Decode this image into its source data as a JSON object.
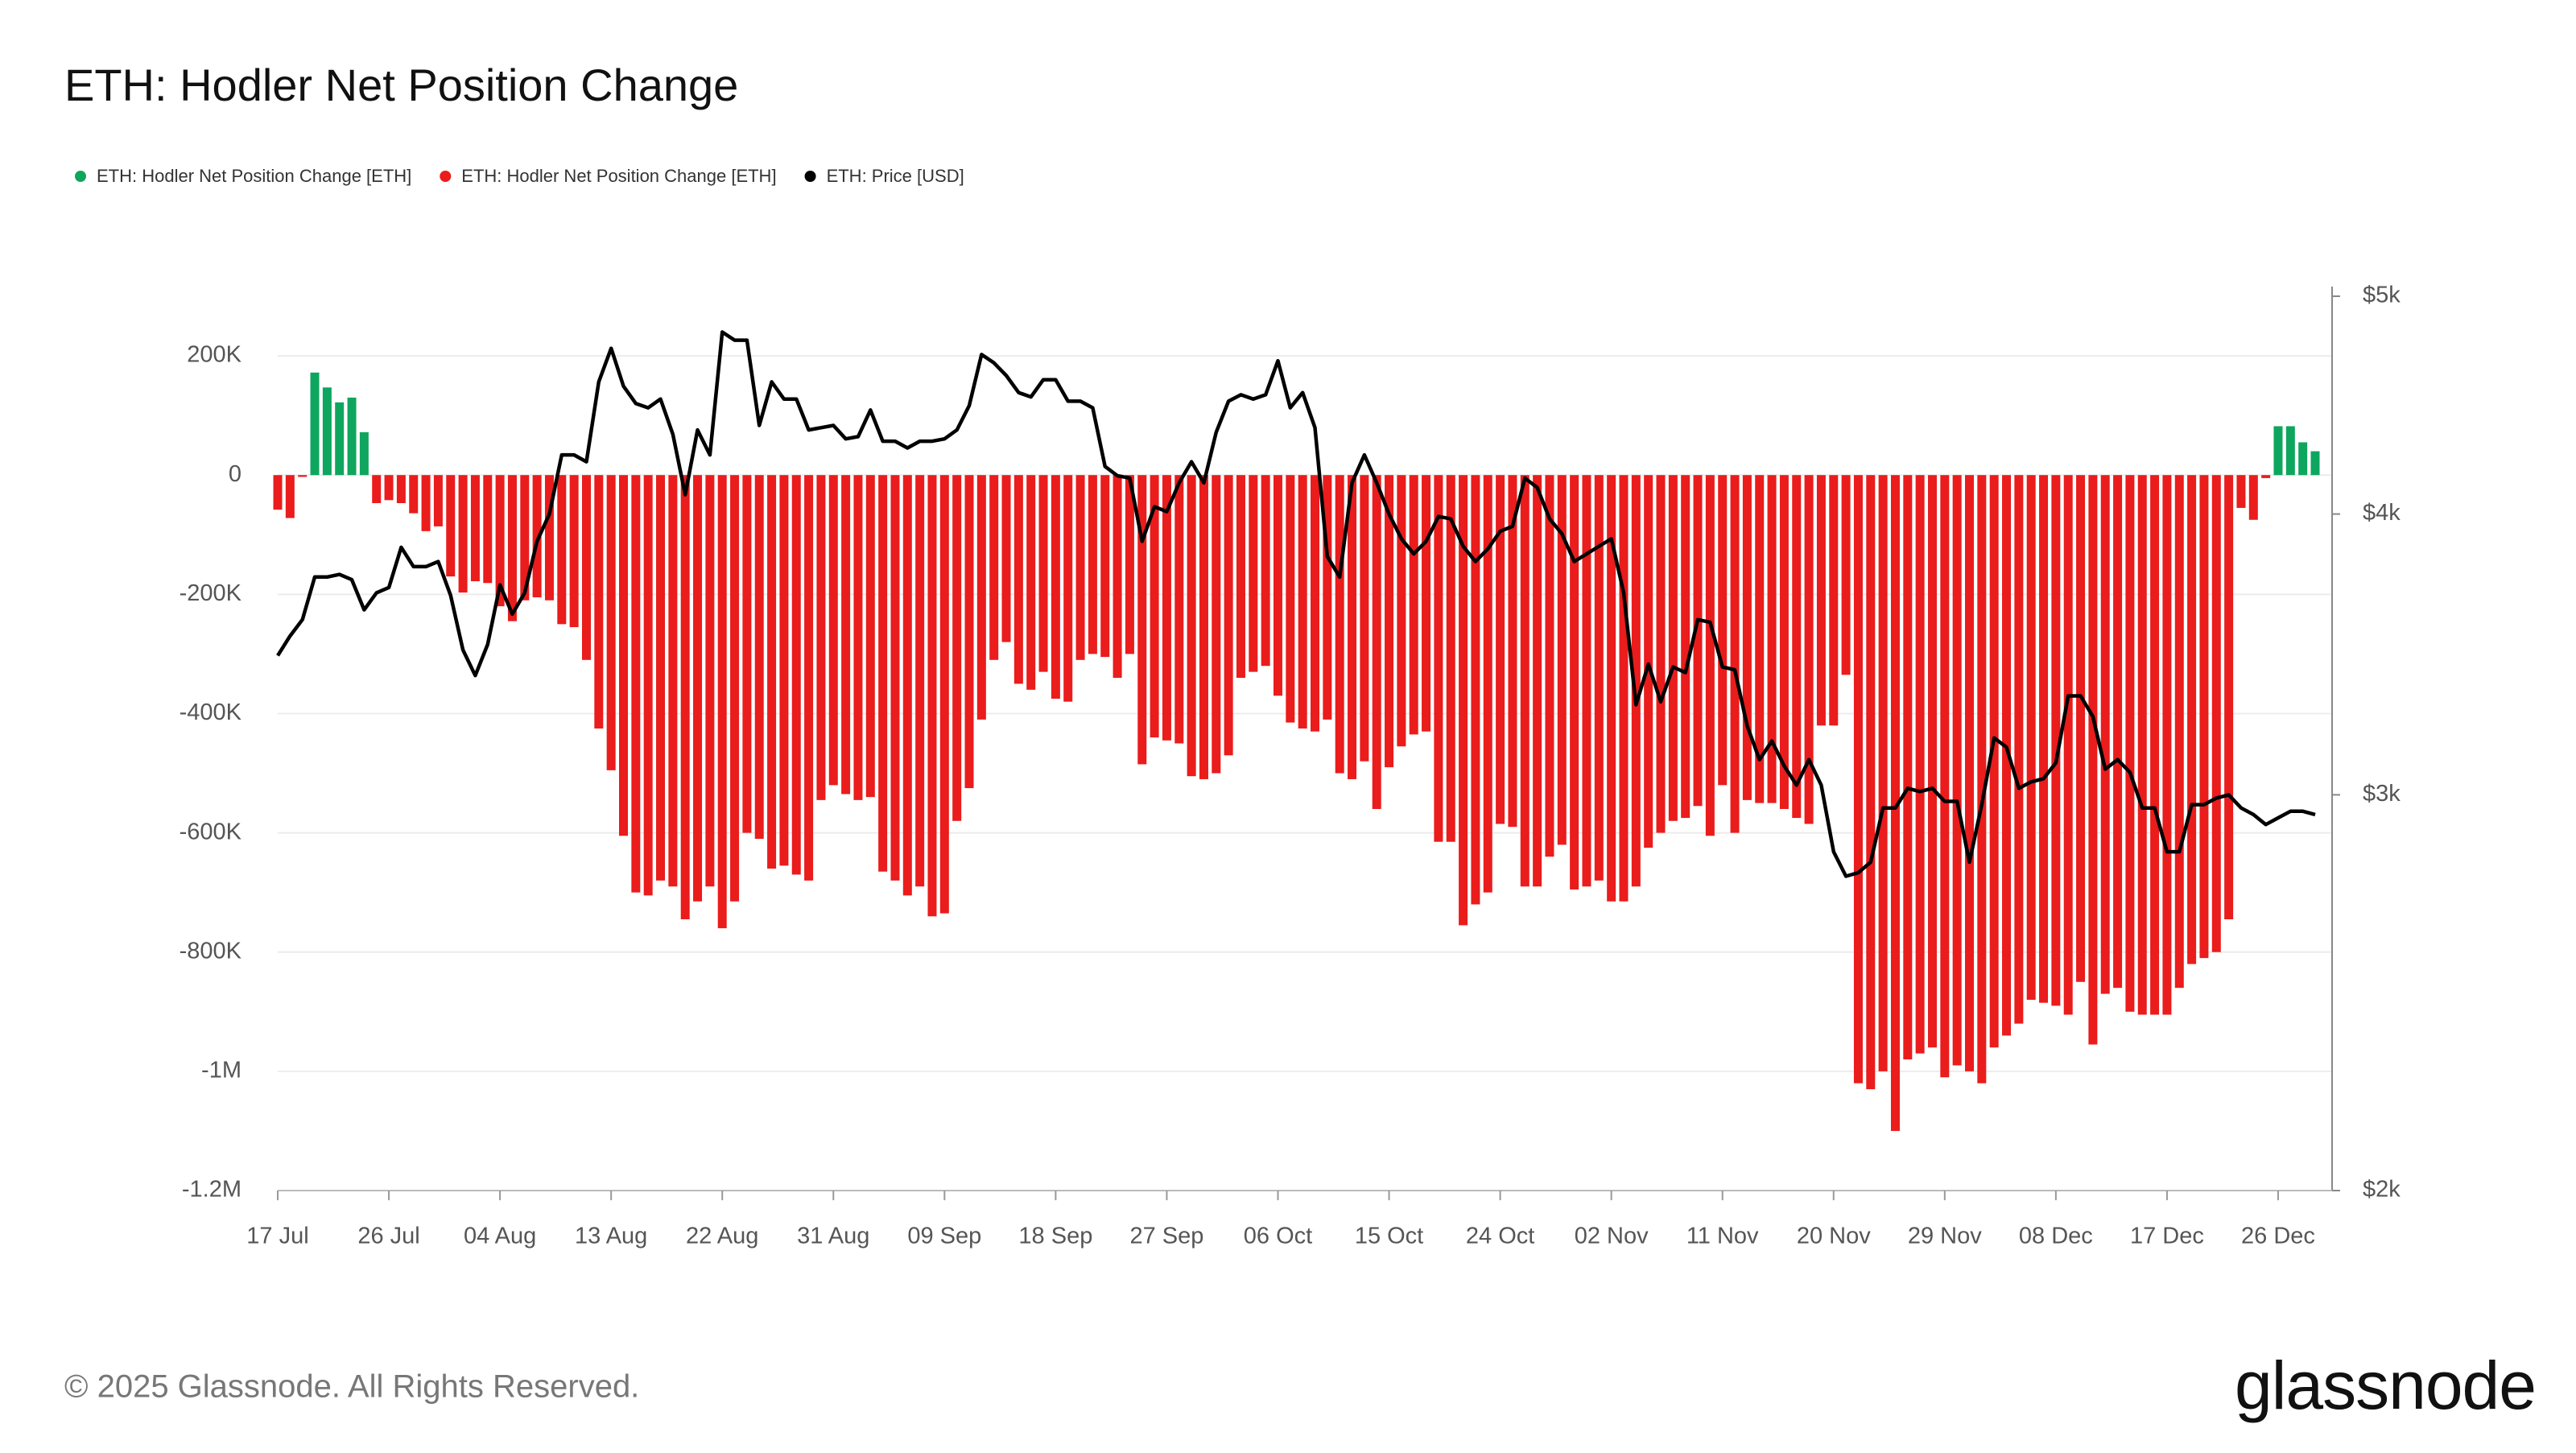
{
  "chart_data": {
    "type": "bar-line",
    "title": "ETH: Hodler Net Position Change",
    "categories": [
      "17 Jul",
      null,
      null,
      null,
      null,
      null,
      null,
      null,
      null,
      "26 Jul",
      null,
      null,
      null,
      null,
      null,
      null,
      null,
      null,
      "04 Aug",
      null,
      null,
      null,
      null,
      null,
      null,
      null,
      null,
      "13 Aug",
      null,
      null,
      null,
      null,
      null,
      null,
      null,
      null,
      "22 Aug",
      null,
      null,
      null,
      null,
      null,
      null,
      null,
      null,
      "31 Aug",
      null,
      null,
      null,
      null,
      null,
      null,
      null,
      null,
      "09 Sep",
      null,
      null,
      null,
      null,
      null,
      null,
      null,
      null,
      "18 Sep",
      null,
      null,
      null,
      null,
      null,
      null,
      null,
      null,
      "27 Sep",
      null,
      null,
      null,
      null,
      null,
      null,
      null,
      null,
      "06 Oct",
      null,
      null,
      null,
      null,
      null,
      null,
      null,
      null,
      "15 Oct",
      null,
      null,
      null,
      null,
      null,
      null,
      null,
      null,
      "24 Oct",
      null,
      null,
      null,
      null,
      null,
      null,
      null,
      null,
      "02 Nov",
      null,
      null,
      null,
      null,
      null,
      null,
      null,
      null,
      "11 Nov",
      null,
      null,
      null,
      null,
      null,
      null,
      null,
      null,
      "20 Nov",
      null,
      null,
      null,
      null,
      null,
      null,
      null,
      null,
      "29 Nov",
      null,
      null,
      null,
      null,
      null,
      null,
      null,
      null,
      "08 Dec",
      null,
      null,
      null,
      null,
      null,
      null,
      null,
      null,
      "17 Dec",
      null,
      null,
      null,
      null,
      null,
      null,
      null,
      null,
      "26 Dec",
      null,
      null,
      null
    ],
    "series": [
      {
        "name": "ETH: Hodler Net Position Change [ETH]",
        "color": "#0ea65e",
        "kind": "bar",
        "values": [
          null,
          null,
          null,
          172000,
          147000,
          122000,
          130000,
          72000,
          null,
          null,
          null,
          null,
          null,
          null,
          null,
          null,
          null,
          null,
          null,
          null,
          null,
          null,
          null,
          null,
          null,
          null,
          null,
          null,
          null,
          null,
          null,
          null,
          null,
          null,
          null,
          null,
          null,
          null,
          null,
          null,
          null,
          null,
          null,
          null,
          null,
          null,
          null,
          null,
          null,
          null,
          null,
          null,
          null,
          null,
          null,
          null,
          null,
          null,
          null,
          null,
          null,
          null,
          null,
          null,
          null,
          null,
          null,
          null,
          null,
          null,
          null,
          null,
          null,
          null,
          null,
          null,
          null,
          null,
          null,
          null,
          null,
          null,
          null,
          null,
          null,
          null,
          null,
          null,
          null,
          null,
          null,
          null,
          null,
          null,
          null,
          null,
          null,
          null,
          null,
          null,
          null,
          null,
          null,
          null,
          null,
          null,
          null,
          null,
          null,
          null,
          null,
          null,
          null,
          null,
          null,
          null,
          null,
          null,
          null,
          null,
          null,
          null,
          null,
          null,
          null,
          null,
          null,
          null,
          null,
          null,
          null,
          null,
          null,
          null,
          null,
          null,
          null,
          null,
          null,
          null,
          null,
          null,
          null,
          null,
          null,
          null,
          null,
          null,
          null,
          null,
          null,
          null,
          null,
          null,
          null,
          null,
          null,
          null,
          null,
          null,
          null,
          null,
          82000,
          82000,
          55000,
          40000
        ]
      },
      {
        "name": "ETH: Hodler Net Position Change [ETH]",
        "color": "#ea1c1c",
        "kind": "bar",
        "values": [
          -58000,
          -72000,
          -3000,
          null,
          null,
          null,
          null,
          null,
          -47000,
          -42000,
          -47000,
          -64000,
          -94000,
          -86000,
          -170000,
          -197000,
          -178000,
          -181000,
          -220000,
          -245000,
          -210000,
          -205000,
          -210000,
          -250000,
          -255000,
          -310000,
          -425000,
          -495000,
          -605000,
          -700000,
          -705000,
          -680000,
          -690000,
          -745000,
          -715000,
          -690000,
          -760000,
          -715000,
          -600000,
          -610000,
          -660000,
          -655000,
          -670000,
          -680000,
          -545000,
          -520000,
          -535000,
          -545000,
          -540000,
          -665000,
          -680000,
          -705000,
          -690000,
          -740000,
          -735000,
          -580000,
          -525000,
          -410000,
          -310000,
          -280000,
          -350000,
          -360000,
          -330000,
          -375000,
          -380000,
          -310000,
          -300000,
          -305000,
          -340000,
          -300000,
          -485000,
          -440000,
          -445000,
          -450000,
          -505000,
          -510000,
          -500000,
          -470000,
          -340000,
          -330000,
          -320000,
          -370000,
          -415000,
          -425000,
          -430000,
          -410000,
          -500000,
          -510000,
          -480000,
          -560000,
          -490000,
          -455000,
          -435000,
          -430000,
          -615000,
          -615000,
          -755000,
          -720000,
          -700000,
          -585000,
          -590000,
          -690000,
          -690000,
          -640000,
          -620000,
          -695000,
          -690000,
          -680000,
          -715000,
          -715000,
          -690000,
          -625000,
          -600000,
          -580000,
          -575000,
          -555000,
          -605000,
          -520000,
          -600000,
          -545000,
          -550000,
          -550000,
          -560000,
          -575000,
          -585000,
          -420000,
          -420000,
          -335000,
          -1020000,
          -1030000,
          -1000000,
          -1100000,
          -980000,
          -970000,
          -960000,
          -1010000,
          -990000,
          -1000000,
          -1020000,
          -960000,
          -940000,
          -920000,
          -880000,
          -885000,
          -890000,
          -905000,
          -850000,
          -955000,
          -870000,
          -860000,
          -900000,
          -905000,
          -905000,
          -905000,
          -860000,
          -820000,
          -810000,
          -800000,
          -745000,
          -55000,
          -75000,
          -5000,
          null,
          null,
          null,
          null
        ]
      },
      {
        "name": "ETH: Price [USD]",
        "color": "#000000",
        "kind": "line",
        "axis": "y2",
        "values": [
          3460,
          3530,
          3590,
          3750,
          3750,
          3760,
          3740,
          3626,
          3690,
          3710,
          3866,
          3790,
          3790,
          3810,
          3680,
          3480,
          3390,
          3500,
          3720,
          3610,
          3690,
          3890,
          4000,
          4250,
          4250,
          4220,
          4580,
          4740,
          4560,
          4480,
          4460,
          4500,
          4340,
          4080,
          4360,
          4250,
          4820,
          4780,
          4780,
          4380,
          4580,
          4500,
          4500,
          4360,
          4370,
          4380,
          4320,
          4330,
          4450,
          4310,
          4310,
          4280,
          4310,
          4310,
          4320,
          4360,
          4470,
          4710,
          4670,
          4610,
          4530,
          4510,
          4590,
          4590,
          4490,
          4490,
          4460,
          4200,
          4160,
          4150,
          3890,
          4030,
          4010,
          4130,
          4220,
          4130,
          4350,
          4490,
          4520,
          4500,
          4520,
          4680,
          4460,
          4530,
          4370,
          3830,
          3750,
          4130,
          4250,
          4130,
          4000,
          3900,
          3840,
          3890,
          3990,
          3980,
          3870,
          3810,
          3860,
          3930,
          3950,
          4150,
          4110,
          3980,
          3920,
          3810,
          3840,
          3870,
          3900,
          3690,
          3290,
          3430,
          3300,
          3420,
          3400,
          3590,
          3580,
          3420,
          3410,
          3220,
          3110,
          3170,
          3090,
          3030,
          3110,
          3030,
          2830,
          2760,
          2770,
          2800,
          2960,
          2960,
          3020,
          3010,
          3020,
          2980,
          2980,
          2800,
          2970,
          3180,
          3150,
          3020,
          3040,
          3050,
          3100,
          3320,
          3320,
          3250,
          3080,
          3110,
          3070,
          2960,
          2960,
          2830,
          2830,
          2970,
          2970,
          2990,
          3000,
          2960,
          2940,
          2910,
          2930,
          2950,
          2950,
          2940
        ]
      }
    ],
    "ylim": [
      -1200000,
      300000
    ],
    "yticks": [
      {
        "value": -1200000,
        "label": "-1.2M"
      },
      {
        "value": -1000000,
        "label": "-1M"
      },
      {
        "value": -800000,
        "label": "-800K"
      },
      {
        "value": -600000,
        "label": "-600K"
      },
      {
        "value": -400000,
        "label": "-400K"
      },
      {
        "value": -200000,
        "label": "-200K"
      },
      0,
      {
        "value": 200000,
        "label": "200K"
      }
    ],
    "y2lim": [
      2000,
      5000
    ],
    "y2scale": "log",
    "y2ticks": [
      {
        "value": 2000,
        "label": "$2k"
      },
      {
        "value": 3000,
        "label": "$3k"
      },
      {
        "value": 4000,
        "label": "$4k"
      },
      {
        "value": 5000,
        "label": "$5k"
      }
    ],
    "grid": true
  },
  "footer": {
    "copyright": "© 2025 Glassnode. All Rights Reserved.",
    "logo": "glassnode"
  }
}
